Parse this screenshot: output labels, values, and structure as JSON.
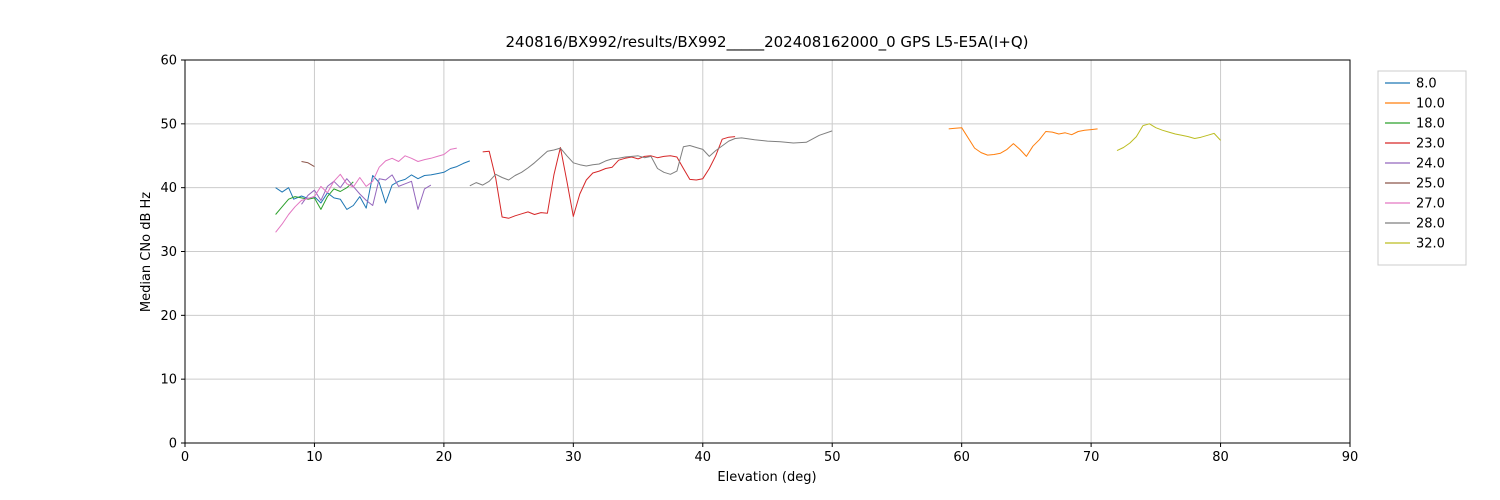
{
  "chart_data": {
    "type": "line",
    "title": "240816/BX992/results/BX992_____202408162000_0 GPS L5-E5A(I+Q)",
    "xlabel": "Elevation (deg)",
    "ylabel": "Median CNo dB Hz",
    "xlim": [
      0,
      90
    ],
    "ylim": [
      0,
      60
    ],
    "xticks": [
      0,
      10,
      20,
      30,
      40,
      50,
      60,
      70,
      80,
      90
    ],
    "yticks": [
      0,
      10,
      20,
      30,
      40,
      50,
      60
    ],
    "grid": true,
    "grid_color": "#cccccc",
    "axis_color": "#000000",
    "legend_position": "outside-right",
    "series": [
      {
        "name": "8.0",
        "color": "#1f77b4",
        "points": [
          [
            7,
            40.0
          ],
          [
            7.5,
            39.3
          ],
          [
            8,
            40.0
          ],
          [
            8.4,
            38.2
          ],
          [
            9,
            38.7
          ],
          [
            9.5,
            38.3
          ],
          [
            10,
            38.6
          ],
          [
            10.5,
            37.6
          ],
          [
            11,
            39.2
          ],
          [
            11.5,
            38.4
          ],
          [
            12,
            38.2
          ],
          [
            12.5,
            36.6
          ],
          [
            13,
            37.2
          ],
          [
            13.5,
            38.6
          ],
          [
            14,
            36.8
          ],
          [
            14.5,
            41.9
          ],
          [
            15,
            40.8
          ],
          [
            15.5,
            37.6
          ],
          [
            16,
            40.4
          ],
          [
            16.5,
            41.0
          ],
          [
            17,
            41.3
          ],
          [
            17.5,
            42.0
          ],
          [
            18,
            41.4
          ],
          [
            18.5,
            41.9
          ],
          [
            19,
            42.0
          ],
          [
            19.5,
            42.2
          ],
          [
            20,
            42.4
          ],
          [
            20.5,
            43.0
          ],
          [
            21,
            43.3
          ],
          [
            21.5,
            43.8
          ],
          [
            22,
            44.2
          ]
        ]
      },
      {
        "name": "10.0",
        "color": "#ff7f0e",
        "points": [
          [
            59,
            49.2
          ],
          [
            59.5,
            49.3
          ],
          [
            60,
            49.4
          ],
          [
            61,
            46.2
          ],
          [
            61.5,
            45.5
          ],
          [
            62,
            45.1
          ],
          [
            62.5,
            45.2
          ],
          [
            63,
            45.4
          ],
          [
            63.5,
            46.0
          ],
          [
            64,
            46.9
          ],
          [
            64.5,
            46.0
          ],
          [
            65,
            44.9
          ],
          [
            65.5,
            46.5
          ],
          [
            66,
            47.5
          ],
          [
            66.5,
            48.8
          ],
          [
            67,
            48.7
          ],
          [
            67.5,
            48.4
          ],
          [
            68,
            48.6
          ],
          [
            68.5,
            48.3
          ],
          [
            69,
            48.8
          ],
          [
            69.5,
            49.0
          ],
          [
            70,
            49.1
          ],
          [
            70.5,
            49.2
          ]
        ]
      },
      {
        "name": "18.0",
        "color": "#2ca02c",
        "points": [
          [
            7,
            35.8
          ],
          [
            7.5,
            37.0
          ],
          [
            8,
            38.2
          ],
          [
            8.5,
            38.6
          ],
          [
            9,
            38.4
          ],
          [
            9.5,
            38.2
          ],
          [
            10,
            38.4
          ],
          [
            10.5,
            36.6
          ],
          [
            11,
            38.6
          ],
          [
            11.5,
            39.8
          ],
          [
            12,
            39.4
          ],
          [
            12.5,
            40.0
          ],
          [
            13,
            40.9
          ]
        ]
      },
      {
        "name": "23.0",
        "color": "#d62728",
        "points": [
          [
            23,
            45.6
          ],
          [
            23.5,
            45.7
          ],
          [
            24,
            41.5
          ],
          [
            24.5,
            35.4
          ],
          [
            25,
            35.2
          ],
          [
            25.5,
            35.6
          ],
          [
            26,
            35.9
          ],
          [
            26.5,
            36.2
          ],
          [
            27,
            35.8
          ],
          [
            27.5,
            36.1
          ],
          [
            28,
            36.0
          ],
          [
            28.5,
            42.0
          ],
          [
            29,
            46.3
          ],
          [
            29.5,
            41.0
          ],
          [
            30,
            35.5
          ],
          [
            30.5,
            39.0
          ],
          [
            31,
            41.2
          ],
          [
            31.5,
            42.3
          ],
          [
            32,
            42.6
          ],
          [
            32.5,
            43.0
          ],
          [
            33,
            43.2
          ],
          [
            33.5,
            44.3
          ],
          [
            34,
            44.6
          ],
          [
            34.5,
            44.8
          ],
          [
            35,
            44.5
          ],
          [
            35.5,
            44.9
          ],
          [
            36,
            45.0
          ],
          [
            36.5,
            44.7
          ],
          [
            37,
            44.9
          ],
          [
            37.5,
            45.0
          ],
          [
            38,
            44.8
          ],
          [
            38.5,
            43.0
          ],
          [
            39,
            41.3
          ],
          [
            39.5,
            41.2
          ],
          [
            40,
            41.4
          ],
          [
            40.5,
            43.0
          ],
          [
            41,
            45.0
          ],
          [
            41.5,
            47.6
          ],
          [
            42,
            47.9
          ],
          [
            42.5,
            48.0
          ]
        ]
      },
      {
        "name": "24.0",
        "color": "#9467bd",
        "points": [
          [
            9,
            37.4
          ],
          [
            9.5,
            38.8
          ],
          [
            10,
            39.6
          ],
          [
            10.5,
            38.0
          ],
          [
            11,
            40.2
          ],
          [
            11.5,
            41.0
          ],
          [
            12,
            40.0
          ],
          [
            12.5,
            41.4
          ],
          [
            13,
            40.2
          ],
          [
            13.5,
            39.0
          ],
          [
            14,
            38.0
          ],
          [
            14.5,
            37.2
          ],
          [
            15,
            41.4
          ],
          [
            15.5,
            41.2
          ],
          [
            16,
            42.0
          ],
          [
            16.5,
            40.2
          ],
          [
            17,
            40.6
          ],
          [
            17.5,
            41.0
          ],
          [
            18,
            36.6
          ],
          [
            18.5,
            39.8
          ],
          [
            19,
            40.4
          ]
        ]
      },
      {
        "name": "25.0",
        "color": "#8c564b",
        "points": [
          [
            9,
            44.1
          ],
          [
            9.5,
            43.9
          ],
          [
            10,
            43.3
          ]
        ]
      },
      {
        "name": "27.0",
        "color": "#e377c2",
        "points": [
          [
            7,
            33.0
          ],
          [
            7.5,
            34.3
          ],
          [
            8,
            35.8
          ],
          [
            8.5,
            37.0
          ],
          [
            9,
            38.0
          ],
          [
            9.5,
            38.3
          ],
          [
            10,
            38.6
          ],
          [
            10.5,
            40.2
          ],
          [
            11,
            39.2
          ],
          [
            11.5,
            41.0
          ],
          [
            12,
            42.1
          ],
          [
            12.5,
            40.6
          ],
          [
            13,
            40.1
          ],
          [
            13.5,
            41.6
          ],
          [
            14,
            40.2
          ],
          [
            14.5,
            41.0
          ],
          [
            15,
            43.2
          ],
          [
            15.5,
            44.2
          ],
          [
            16,
            44.6
          ],
          [
            16.5,
            44.1
          ],
          [
            17,
            45.0
          ],
          [
            17.5,
            44.6
          ],
          [
            18,
            44.1
          ],
          [
            18.5,
            44.4
          ],
          [
            19,
            44.6
          ],
          [
            19.5,
            44.9
          ],
          [
            20,
            45.2
          ],
          [
            20.5,
            46.0
          ],
          [
            21,
            46.2
          ]
        ]
      },
      {
        "name": "28.0",
        "color": "#7f7f7f",
        "points": [
          [
            22,
            40.3
          ],
          [
            22.5,
            40.8
          ],
          [
            23,
            40.4
          ],
          [
            23.5,
            41.0
          ],
          [
            24,
            42.1
          ],
          [
            24.5,
            41.6
          ],
          [
            25,
            41.2
          ],
          [
            25.5,
            41.9
          ],
          [
            26,
            42.4
          ],
          [
            26.5,
            43.1
          ],
          [
            27,
            43.9
          ],
          [
            27.5,
            44.8
          ],
          [
            28,
            45.7
          ],
          [
            28.5,
            45.9
          ],
          [
            29,
            46.2
          ],
          [
            29.5,
            45.0
          ],
          [
            30,
            43.9
          ],
          [
            30.5,
            43.6
          ],
          [
            31,
            43.4
          ],
          [
            31.5,
            43.6
          ],
          [
            32,
            43.7
          ],
          [
            32.5,
            44.2
          ],
          [
            33,
            44.5
          ],
          [
            33.5,
            44.6
          ],
          [
            34,
            44.8
          ],
          [
            35,
            45.0
          ],
          [
            35.5,
            44.7
          ],
          [
            36,
            44.9
          ],
          [
            36.5,
            43.0
          ],
          [
            37,
            42.4
          ],
          [
            37.5,
            42.1
          ],
          [
            38,
            42.6
          ],
          [
            38.5,
            46.4
          ],
          [
            39,
            46.6
          ],
          [
            39.5,
            46.3
          ],
          [
            40,
            46.0
          ],
          [
            40.5,
            44.9
          ],
          [
            41,
            45.8
          ],
          [
            42,
            47.3
          ],
          [
            42.5,
            47.7
          ],
          [
            43,
            47.8
          ],
          [
            44,
            47.5
          ],
          [
            45,
            47.3
          ],
          [
            46,
            47.2
          ],
          [
            47,
            47.0
          ],
          [
            48,
            47.1
          ],
          [
            49,
            48.2
          ],
          [
            50,
            48.9
          ]
        ]
      },
      {
        "name": "32.0",
        "color": "#bcbd22",
        "points": [
          [
            72,
            45.8
          ],
          [
            72.5,
            46.3
          ],
          [
            73,
            47.0
          ],
          [
            73.5,
            48.0
          ],
          [
            74,
            49.7
          ],
          [
            74.5,
            50.0
          ],
          [
            75,
            49.4
          ],
          [
            75.5,
            49.0
          ],
          [
            76,
            48.7
          ],
          [
            76.5,
            48.4
          ],
          [
            77,
            48.2
          ],
          [
            77.5,
            48.0
          ],
          [
            78,
            47.7
          ],
          [
            78.5,
            47.9
          ],
          [
            79,
            48.2
          ],
          [
            79.5,
            48.5
          ],
          [
            80,
            47.4
          ]
        ]
      }
    ]
  }
}
